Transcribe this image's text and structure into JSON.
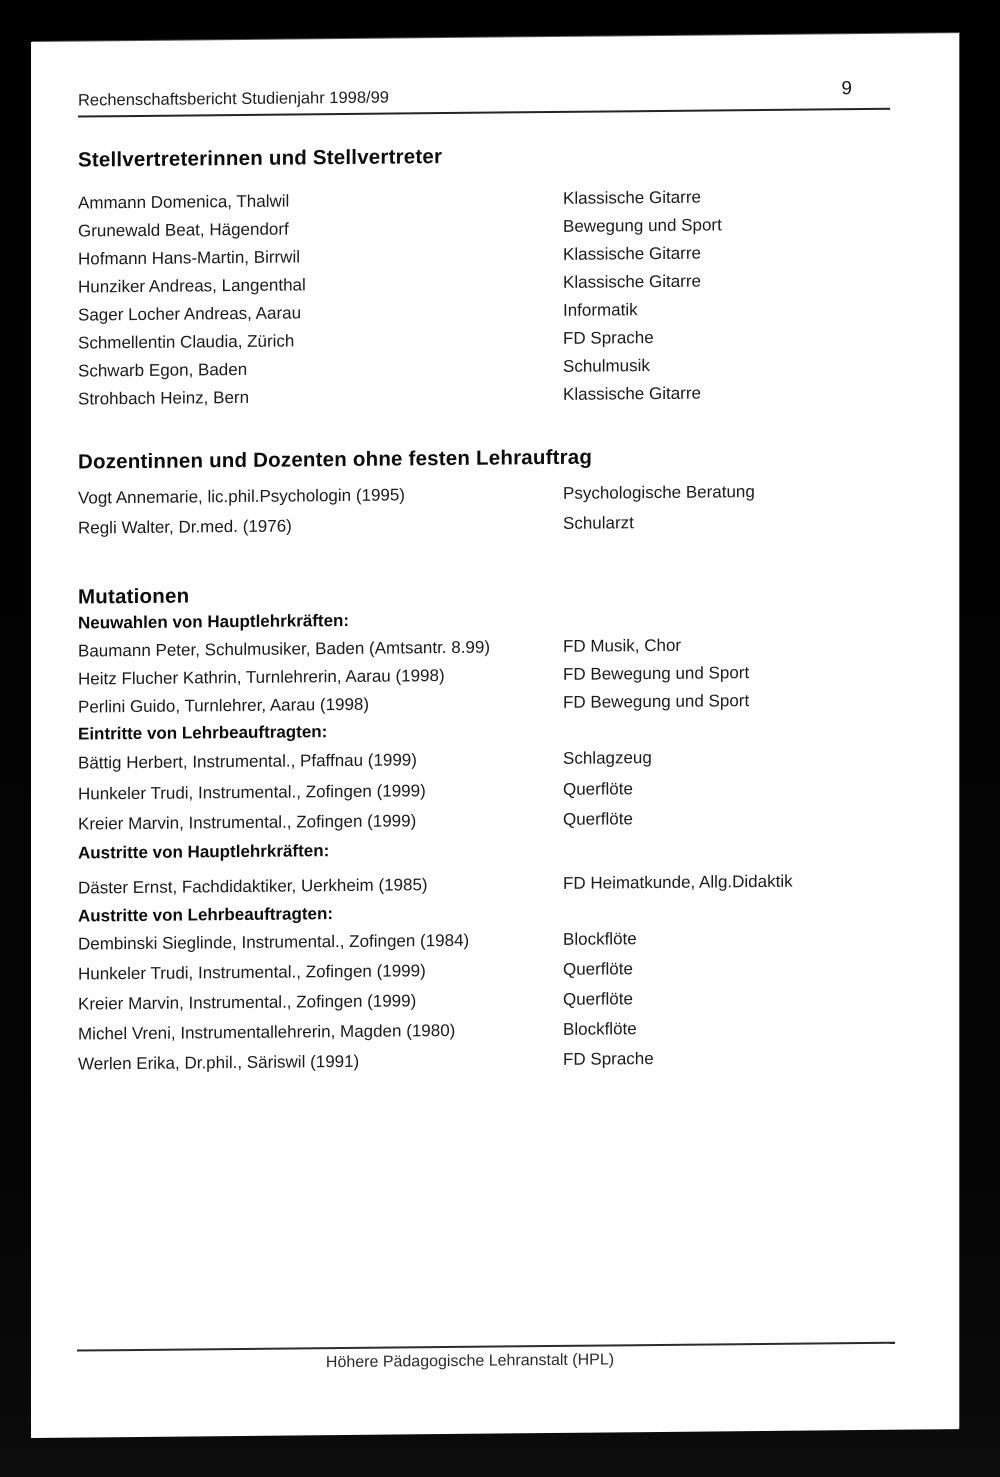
{
  "header": {
    "title": "Rechenschaftsbericht Studienjahr 1998/99",
    "page_number": "9"
  },
  "sections": {
    "deputies": {
      "heading": "Stellvertreterinnen und Stellvertreter",
      "rows": [
        {
          "name": "Ammann Domenica, Thalwil",
          "subject": "Klassische Gitarre"
        },
        {
          "name": "Grunewald Beat, Hägendorf",
          "subject": "Bewegung und Sport"
        },
        {
          "name": "Hofmann Hans-Martin, Birrwil",
          "subject": "Klassische Gitarre"
        },
        {
          "name": "Hunziker Andreas, Langenthal",
          "subject": "Klassische Gitarre"
        },
        {
          "name": "Sager Locher Andreas, Aarau",
          "subject": "Informatik"
        },
        {
          "name": "Schmellentin Claudia, Zürich",
          "subject": "FD Sprache"
        },
        {
          "name": "Schwarb Egon, Baden",
          "subject": "Schulmusik"
        },
        {
          "name": "Strohbach Heinz, Bern",
          "subject": "Klassische Gitarre"
        }
      ]
    },
    "lecturers": {
      "heading": "Dozentinnen und Dozenten ohne festen Lehrauftrag",
      "rows": [
        {
          "name": "Vogt Annemarie, lic.phil.Psychologin (1995)",
          "subject": "Psychologische Beratung"
        },
        {
          "name": "Regli Walter, Dr.med. (1976)",
          "subject": "Schularzt"
        }
      ]
    },
    "mutations": {
      "heading": "Mutationen",
      "neuwahlen": {
        "title": "Neuwahlen von Hauptlehrkräften:",
        "rows": [
          {
            "name": "Baumann Peter, Schulmusiker, Baden (Amtsantr. 8.99)",
            "subject": "FD Musik, Chor"
          },
          {
            "name": "Heitz Flucher Kathrin, Turnlehrerin, Aarau (1998)",
            "subject": "FD Bewegung und Sport"
          },
          {
            "name": "Perlini Guido, Turnlehrer, Aarau (1998)",
            "subject": "FD Bewegung und Sport"
          }
        ]
      },
      "eintritte": {
        "title": "Eintritte von Lehrbeauftragten:",
        "rows": [
          {
            "name": "Bättig Herbert, Instrumental., Pfaffnau (1999)",
            "subject": "Schlagzeug"
          },
          {
            "name": "Hunkeler Trudi, Instrumental., Zofingen (1999)",
            "subject": "Querflöte"
          },
          {
            "name": "Kreier Marvin, Instrumental., Zofingen (1999)",
            "subject": "Querflöte"
          }
        ]
      },
      "austritte_haupt": {
        "title": "Austritte von Hauptlehrkräften:",
        "rows": [
          {
            "name": "Däster Ernst, Fachdidaktiker, Uerkheim (1985)",
            "subject": "FD Heimatkunde, Allg.Didaktik"
          }
        ]
      },
      "austritte_lehr": {
        "title": "Austritte von Lehrbeauftragten:",
        "rows": [
          {
            "name": "Dembinski Sieglinde, Instrumental., Zofingen (1984)",
            "subject": "Blockflöte"
          },
          {
            "name": "Hunkeler Trudi, Instrumental., Zofingen (1999)",
            "subject": "Querflöte"
          },
          {
            "name": "Kreier Marvin, Instrumental., Zofingen (1999)",
            "subject": "Querflöte"
          },
          {
            "name": "Michel Vreni, Instrumentallehrerin, Magden (1980)",
            "subject": "Blockflöte"
          },
          {
            "name": "Werlen Erika, Dr.phil., Säriswil (1991)",
            "subject": "FD Sprache"
          }
        ]
      }
    }
  },
  "footer": {
    "text": "Höhere Pädagogische Lehranstalt (HPL)"
  }
}
